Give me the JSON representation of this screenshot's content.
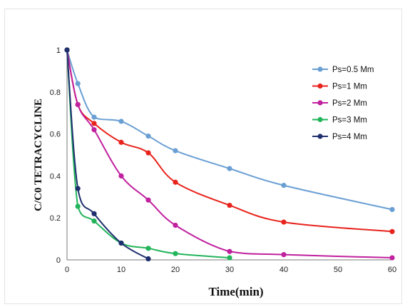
{
  "chart_data": {
    "type": "line",
    "title": "",
    "xlabel": "Time(min)",
    "ylabel": "C/C0 TETRACYCLINE",
    "xlim": [
      0,
      60
    ],
    "ylim": [
      0,
      1
    ],
    "xticks": [
      "0",
      "10",
      "20",
      "30",
      "40",
      "50",
      "60"
    ],
    "yticks": [
      "0",
      "0.2",
      "0.4",
      "0.6",
      "0.8",
      "1"
    ],
    "grid": false,
    "legend_position": "top-right",
    "series": [
      {
        "name": "Ps=0.5 Mm",
        "color": "#6a9fd4",
        "x": [
          0,
          2,
          5,
          10,
          15,
          20,
          30,
          40,
          60
        ],
        "y": [
          1,
          0.84,
          0.68,
          0.66,
          0.59,
          0.52,
          0.435,
          0.355,
          0.24
        ]
      },
      {
        "name": "Ps=1 Mm",
        "color": "#e8231c",
        "x": [
          0,
          2,
          5,
          10,
          15,
          20,
          30,
          40,
          60
        ],
        "y": [
          1,
          0.74,
          0.65,
          0.56,
          0.51,
          0.37,
          0.26,
          0.18,
          0.135
        ]
      },
      {
        "name": "Ps=2 Mm",
        "color": "#c0219e",
        "x": [
          0,
          2,
          5,
          10,
          15,
          20,
          30,
          40,
          60
        ],
        "y": [
          1,
          0.74,
          0.62,
          0.4,
          0.285,
          0.165,
          0.04,
          0.025,
          0.01
        ]
      },
      {
        "name": "Ps=3 Mm",
        "color": "#22b45a",
        "x": [
          0,
          2,
          5,
          10,
          15,
          20,
          30
        ],
        "y": [
          1,
          0.255,
          0.185,
          0.08,
          0.055,
          0.03,
          0.01
        ]
      },
      {
        "name": "Ps=4 Mm",
        "color": "#1f2f6e",
        "x": [
          0,
          2,
          5,
          10,
          15
        ],
        "y": [
          1,
          0.34,
          0.22,
          0.08,
          0.005
        ]
      }
    ]
  }
}
